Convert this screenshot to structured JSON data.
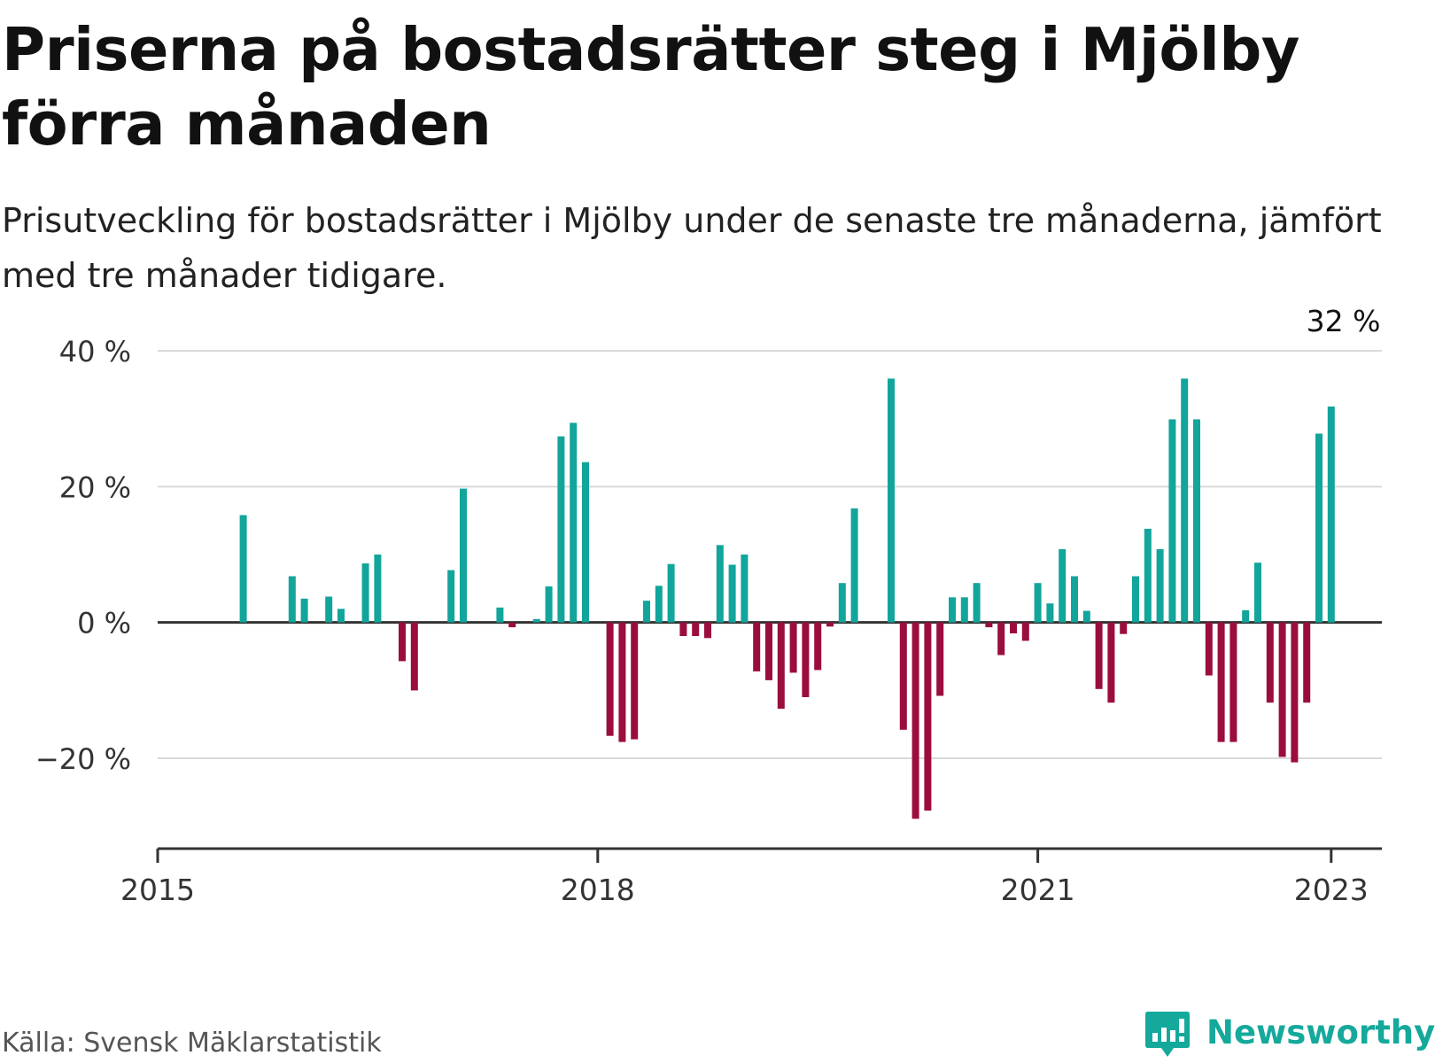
{
  "title": "Priserna på bostadsrätter steg i Mjölby förra månaden",
  "subtitle": "Prisutveckling för bostadsrätter i Mjölby under de senaste tre månaderna, jämfört med tre månader tidigare.",
  "source": "Källa: Svensk Mäklarstatistik",
  "brand": {
    "name": "Newsworthy",
    "icon": "newsworthy-logo-icon",
    "color": "#15a99c"
  },
  "chart_data": {
    "type": "bar",
    "x_start": "2015-01",
    "x_end": "2023-05",
    "x_ticks": [
      {
        "x": "2015-01",
        "label": "2015"
      },
      {
        "x": "2018-01",
        "label": "2018"
      },
      {
        "x": "2021-01",
        "label": "2021"
      },
      {
        "x": "2023-01",
        "label": "2023"
      }
    ],
    "ylim": [
      -32,
      40
    ],
    "y_ticks": [
      {
        "value": 40,
        "label": "40 %"
      },
      {
        "value": 20,
        "label": "20 %"
      },
      {
        "value": 0,
        "label": "0 %"
      },
      {
        "value": -20,
        "label": "−20 %"
      }
    ],
    "grid": true,
    "colors": {
      "positive": "#12a59b",
      "negative": "#9b0d3e"
    },
    "annotation": {
      "x": "2023-02",
      "label": "32 %"
    },
    "series": [
      {
        "values": [
          [
            "2015-08",
            15.8
          ],
          [
            "2015-12",
            6.8
          ],
          [
            "2016-01",
            3.5
          ],
          [
            "2016-03",
            3.8
          ],
          [
            "2016-04",
            2
          ],
          [
            "2016-06",
            8.7
          ],
          [
            "2016-07",
            10
          ],
          [
            "2016-09",
            -5.7
          ],
          [
            "2016-10",
            -10
          ],
          [
            "2017-01",
            7.7
          ],
          [
            "2017-02",
            19.7
          ],
          [
            "2017-05",
            2.2
          ],
          [
            "2017-06",
            -0.7
          ],
          [
            "2017-08",
            0.5
          ],
          [
            "2017-09",
            5.3
          ],
          [
            "2017-10",
            27.4
          ],
          [
            "2017-11",
            29.4
          ],
          [
            "2017-12",
            23.6
          ],
          [
            "2018-02",
            -16.7
          ],
          [
            "2018-03",
            -17.6
          ],
          [
            "2018-04",
            -17.2
          ],
          [
            "2018-05",
            3.2
          ],
          [
            "2018-06",
            5.4
          ],
          [
            "2018-07",
            8.6
          ],
          [
            "2018-08",
            -2
          ],
          [
            "2018-09",
            -2
          ],
          [
            "2018-10",
            -2.3
          ],
          [
            "2018-11",
            11.4
          ],
          [
            "2018-12",
            8.5
          ],
          [
            "2019-01",
            10
          ],
          [
            "2019-02",
            -7.2
          ],
          [
            "2019-03",
            -8.5
          ],
          [
            "2019-04",
            -12.7
          ],
          [
            "2019-05",
            -7.4
          ],
          [
            "2019-06",
            -11
          ],
          [
            "2019-07",
            -7
          ],
          [
            "2019-08",
            -0.6
          ],
          [
            "2019-09",
            5.8
          ],
          [
            "2019-10",
            16.8
          ],
          [
            "2020-01",
            35.9
          ],
          [
            "2020-02",
            -15.8
          ],
          [
            "2020-03",
            -28.9
          ],
          [
            "2020-04",
            -27.7
          ],
          [
            "2020-05",
            -10.8
          ],
          [
            "2020-06",
            3.7
          ],
          [
            "2020-07",
            3.7
          ],
          [
            "2020-08",
            5.8
          ],
          [
            "2020-09",
            -0.7
          ],
          [
            "2020-10",
            -4.8
          ],
          [
            "2020-11",
            -1.6
          ],
          [
            "2020-12",
            -2.7
          ],
          [
            "2021-01",
            5.8
          ],
          [
            "2021-02",
            2.8
          ],
          [
            "2021-03",
            10.8
          ],
          [
            "2021-04",
            6.8
          ],
          [
            "2021-05",
            1.7
          ],
          [
            "2021-06",
            -9.8
          ],
          [
            "2021-07",
            -11.8
          ],
          [
            "2021-08",
            -1.7
          ],
          [
            "2021-09",
            6.8
          ],
          [
            "2021-10",
            13.8
          ],
          [
            "2021-11",
            10.8
          ],
          [
            "2021-12",
            29.9
          ],
          [
            "2022-01",
            35.9
          ],
          [
            "2022-02",
            29.9
          ],
          [
            "2022-03",
            -7.8
          ],
          [
            "2022-04",
            -17.6
          ],
          [
            "2022-05",
            -17.6
          ],
          [
            "2022-06",
            1.8
          ],
          [
            "2022-07",
            8.8
          ],
          [
            "2022-08",
            -11.8
          ],
          [
            "2022-09",
            -19.8
          ],
          [
            "2022-10",
            -20.6
          ],
          [
            "2022-11",
            -11.8
          ],
          [
            "2022-12",
            27.8
          ],
          [
            "2023-01",
            31.8
          ]
        ]
      }
    ]
  }
}
